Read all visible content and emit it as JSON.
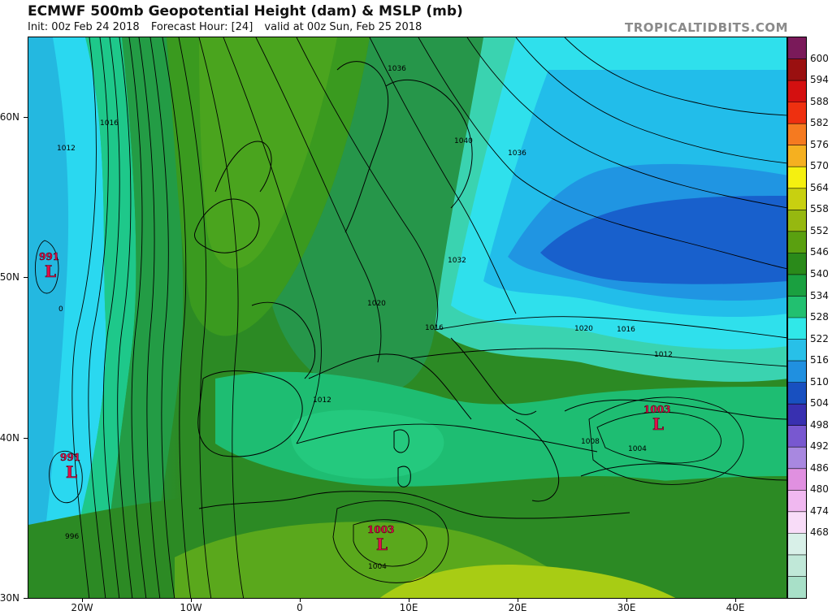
{
  "header": {
    "title": "ECMWF 500mb Geopotential Height (dam) & MSLP (mb)",
    "init": "Init: 00z Feb 24 2018",
    "forecast_hour": "Forecast Hour: [24]",
    "valid": "valid at 00z Sun, Feb 25 2018",
    "brand": "TROPICALTIDBITS.COM"
  },
  "colorbar": {
    "labels": [
      "600",
      "594",
      "588",
      "582",
      "576",
      "570",
      "564",
      "558",
      "552",
      "546",
      "540",
      "534",
      "528",
      "522",
      "516",
      "510",
      "504",
      "498",
      "492",
      "486",
      "480",
      "474",
      "468"
    ],
    "colors": [
      "#7a1a5a",
      "#9a1010",
      "#d41010",
      "#ee3010",
      "#f57a20",
      "#f5b020",
      "#f5f010",
      "#c8d010",
      "#96b810",
      "#5aa010",
      "#2a8a1a",
      "#1aa040",
      "#22c070",
      "#30e8e8",
      "#28c0e8",
      "#2090e0",
      "#1850c0",
      "#3830b0",
      "#7858d0",
      "#a888e0",
      "#e090e0",
      "#f0b8f0",
      "#f8dcf8",
      "#d8f0e8",
      "#c0e8d8",
      "#a8e0c8"
    ]
  },
  "axes": {
    "lat_labels": [
      "60N",
      "50N",
      "40N",
      "30N"
    ],
    "lon_labels": [
      "20W",
      "10W",
      "0",
      "10E",
      "20E",
      "30E",
      "40E"
    ]
  },
  "lows": [
    {
      "pressure": "991",
      "letter": "L"
    },
    {
      "pressure": "991",
      "letter": "L"
    },
    {
      "pressure": "1003",
      "letter": "L"
    },
    {
      "pressure": "1003",
      "letter": "L"
    }
  ],
  "isobar_labels": [
    "1036",
    "1040",
    "1036",
    "1016",
    "1012",
    "1032",
    "1020",
    "1016",
    "1020",
    "1016",
    "1012",
    "1012",
    "1008",
    "1004",
    "0",
    "996",
    "1004"
  ]
}
